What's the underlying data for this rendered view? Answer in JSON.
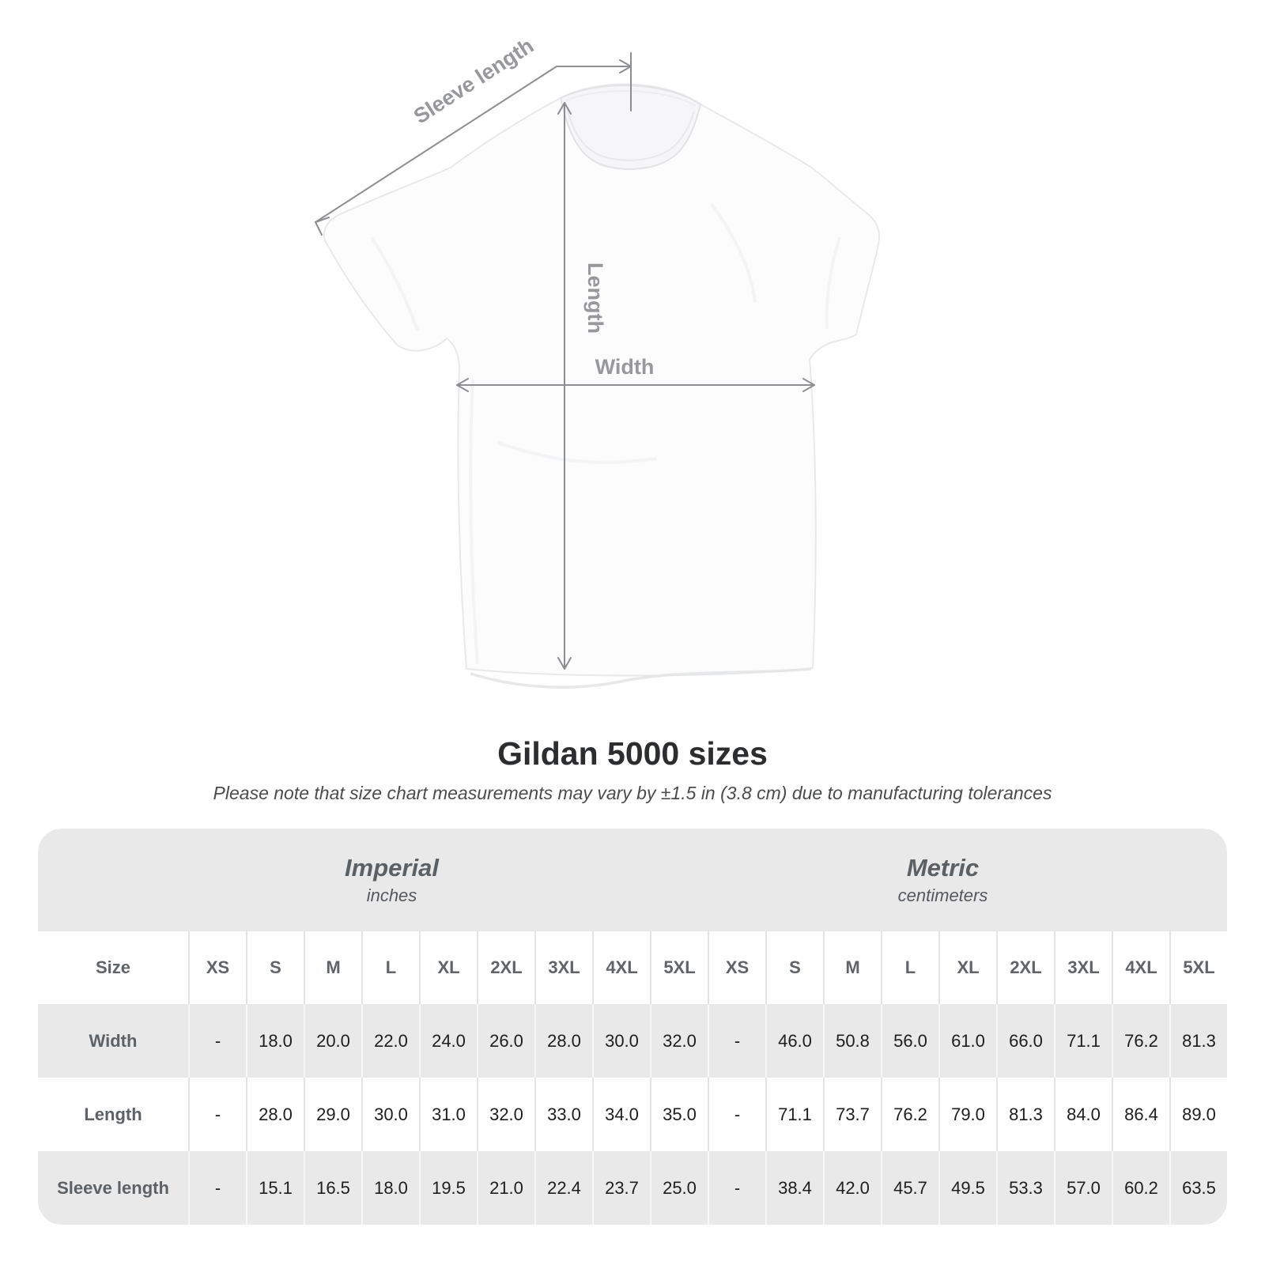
{
  "diagram": {
    "shirt_description": "white crew-neck t-shirt, front view",
    "labels": {
      "sleeve_length": "Sleeve length",
      "length": "Length",
      "width": "Width"
    },
    "line_color": "#8d8e91",
    "label_color": "#97989b"
  },
  "chart_data": {
    "type": "table",
    "title": "Gildan 5000 sizes",
    "subtitle": "Please note that size chart measurements may vary by ±1.5 in (3.8 cm) due to manufacturing tolerances",
    "size_header": "Size",
    "sections": [
      {
        "name": "Imperial",
        "unit": "inches"
      },
      {
        "name": "Metric",
        "unit": "centimeters"
      }
    ],
    "sizes": [
      "XS",
      "S",
      "M",
      "L",
      "XL",
      "2XL",
      "3XL",
      "4XL",
      "5XL"
    ],
    "rows": [
      {
        "label": "Width",
        "imperial": [
          "-",
          "18.0",
          "20.0",
          "22.0",
          "24.0",
          "26.0",
          "28.0",
          "30.0",
          "32.0"
        ],
        "metric": [
          "-",
          "46.0",
          "50.8",
          "56.0",
          "61.0",
          "66.0",
          "71.1",
          "76.2",
          "81.3"
        ]
      },
      {
        "label": "Length",
        "imperial": [
          "-",
          "28.0",
          "29.0",
          "30.0",
          "31.0",
          "32.0",
          "33.0",
          "34.0",
          "35.0"
        ],
        "metric": [
          "-",
          "71.1",
          "73.7",
          "76.2",
          "79.0",
          "81.3",
          "84.0",
          "86.4",
          "89.0"
        ]
      },
      {
        "label": "Sleeve length",
        "imperial": [
          "-",
          "15.1",
          "16.5",
          "18.0",
          "19.5",
          "21.0",
          "22.4",
          "23.7",
          "25.0"
        ],
        "metric": [
          "-",
          "38.4",
          "42.0",
          "45.7",
          "49.5",
          "53.3",
          "57.0",
          "60.2",
          "63.5"
        ]
      }
    ],
    "colors": {
      "band_background": "#e9e9e9",
      "shaded_row_background": "#e9e9e9",
      "light_row_background": "#ffffff",
      "header_text": "#5f6468",
      "value_text": "#1d1e20"
    }
  }
}
